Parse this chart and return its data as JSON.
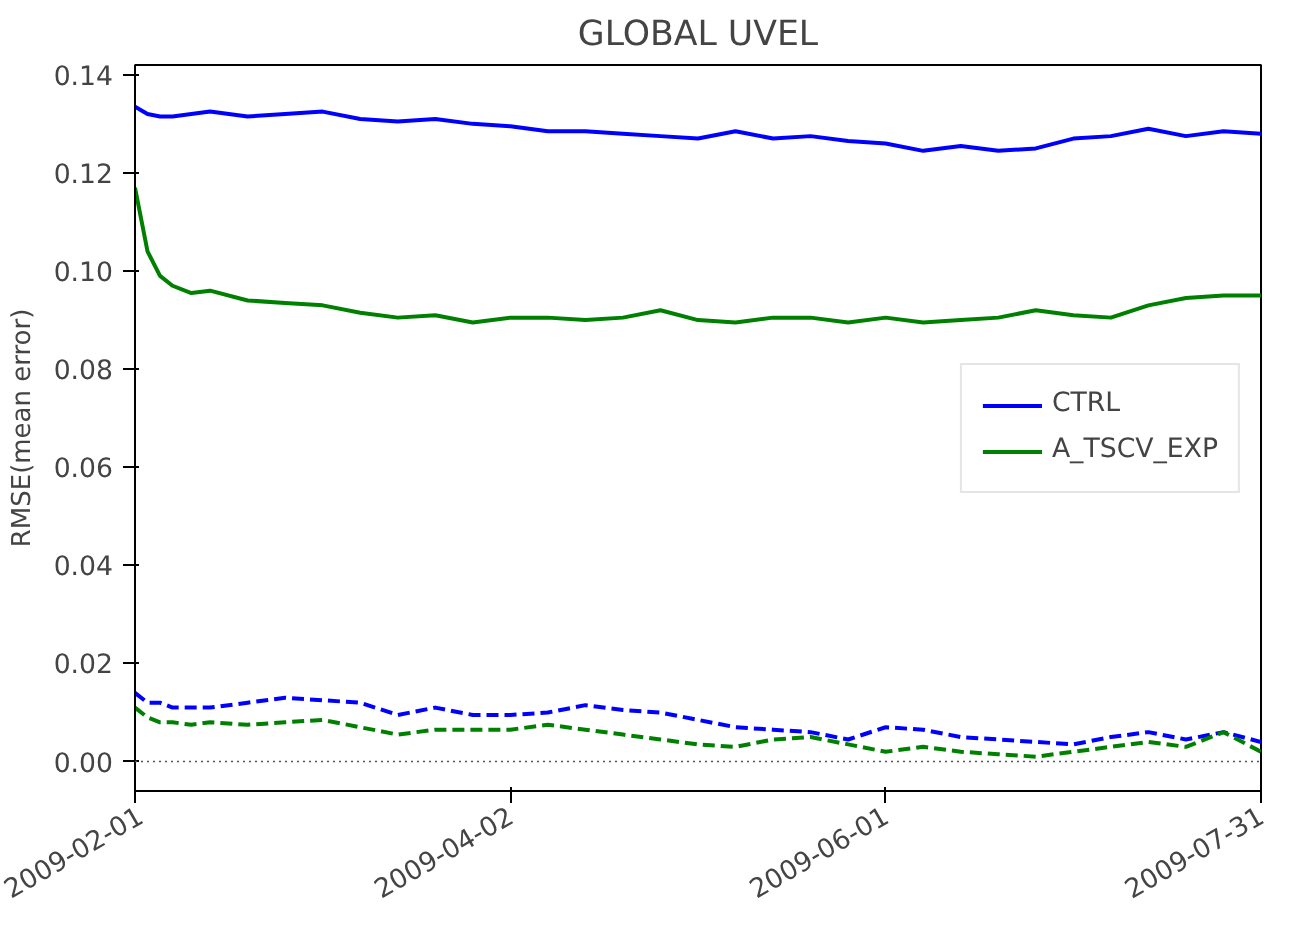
{
  "chart_data": {
    "type": "line",
    "title": "GLOBAL UVEL",
    "ylabel": "RMSE(mean error)",
    "x": [
      "2009-02-01",
      "2009-02-03",
      "2009-02-05",
      "2009-02-07",
      "2009-02-10",
      "2009-02-13",
      "2009-02-19",
      "2009-02-25",
      "2009-03-03",
      "2009-03-09",
      "2009-03-15",
      "2009-03-21",
      "2009-03-27",
      "2009-04-02",
      "2009-04-08",
      "2009-04-14",
      "2009-04-20",
      "2009-04-26",
      "2009-05-02",
      "2009-05-08",
      "2009-05-14",
      "2009-05-20",
      "2009-05-26",
      "2009-06-01",
      "2009-06-07",
      "2009-06-13",
      "2009-06-19",
      "2009-06-25",
      "2009-07-01",
      "2009-07-07",
      "2009-07-13",
      "2009-07-19",
      "2009-07-25",
      "2009-07-31"
    ],
    "series": [
      {
        "name": "CTRL",
        "color": "#0000ff",
        "line_style": "solid",
        "values": [
          0.1335,
          0.132,
          0.1315,
          0.1315,
          0.132,
          0.1325,
          0.1315,
          0.132,
          0.1325,
          0.131,
          0.1305,
          0.131,
          0.13,
          0.1295,
          0.1285,
          0.1285,
          0.128,
          0.1275,
          0.127,
          0.1285,
          0.127,
          0.1275,
          0.1265,
          0.126,
          0.1245,
          0.1255,
          0.1245,
          0.125,
          0.127,
          0.1275,
          0.129,
          0.1275,
          0.1285,
          0.128
        ]
      },
      {
        "name": "A_TSCV_EXP",
        "color": "#008000",
        "line_style": "solid",
        "values": [
          0.117,
          0.104,
          0.099,
          0.097,
          0.0955,
          0.096,
          0.094,
          0.0935,
          0.093,
          0.0915,
          0.0905,
          0.091,
          0.0895,
          0.0905,
          0.0905,
          0.09,
          0.0905,
          0.092,
          0.09,
          0.0895,
          0.0905,
          0.0905,
          0.0895,
          0.0905,
          0.0895,
          0.09,
          0.0905,
          0.092,
          0.091,
          0.0905,
          0.093,
          0.0945,
          0.095,
          0.095
        ]
      },
      {
        "color": "#0000ff",
        "line_style": "dashed",
        "values": [
          0.014,
          0.012,
          0.012,
          0.011,
          0.011,
          0.011,
          0.012,
          0.013,
          0.0125,
          0.012,
          0.0095,
          0.011,
          0.0095,
          0.0095,
          0.01,
          0.0115,
          0.0105,
          0.01,
          0.0085,
          0.007,
          0.0065,
          0.006,
          0.0045,
          0.007,
          0.0065,
          0.005,
          0.0045,
          0.004,
          0.0035,
          0.005,
          0.006,
          0.0045,
          0.006,
          0.004
        ]
      },
      {
        "color": "#008000",
        "line_style": "dashed",
        "values": [
          0.011,
          0.009,
          0.008,
          0.008,
          0.0075,
          0.008,
          0.0075,
          0.008,
          0.0085,
          0.007,
          0.0055,
          0.0065,
          0.0065,
          0.0065,
          0.0075,
          0.0065,
          0.0055,
          0.0045,
          0.0035,
          0.003,
          0.0045,
          0.005,
          0.0035,
          0.002,
          0.003,
          0.002,
          0.0015,
          0.001,
          0.002,
          0.003,
          0.004,
          0.003,
          0.006,
          0.002
        ]
      }
    ],
    "xlim": [
      "2009-02-01",
      "2009-07-31"
    ],
    "xticks": [
      "2009-02-01",
      "2009-04-02",
      "2009-06-01",
      "2009-07-31"
    ],
    "ylim": [
      -0.006,
      0.142
    ],
    "yticks": [
      {
        "value": 0,
        "label": "0.00"
      },
      {
        "value": 0.02,
        "label": "0.02"
      },
      {
        "value": 0.04,
        "label": "0.04"
      },
      {
        "value": 0.06,
        "label": "0.06"
      },
      {
        "value": 0.08,
        "label": "0.08"
      },
      {
        "value": 0.1,
        "label": "0.10"
      },
      {
        "value": 0.12,
        "label": "0.12"
      },
      {
        "value": 0.14,
        "label": "0.14"
      }
    ],
    "ref_lines": [
      {
        "axis": "y",
        "value": 0,
        "color": "#555555",
        "line_style": "dotted"
      }
    ],
    "legend": "right",
    "grid": false
  }
}
